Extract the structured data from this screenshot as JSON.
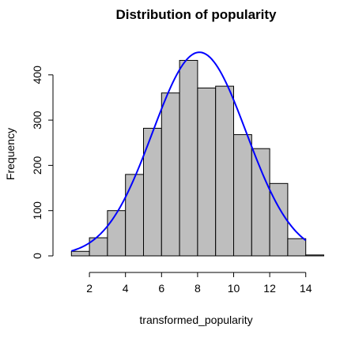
{
  "chart_data": {
    "type": "bar",
    "title": "Distribution of popularity",
    "xlabel": "transformed_popularity",
    "ylabel": "Frequency",
    "bins": [
      [
        1,
        2
      ],
      [
        2,
        3
      ],
      [
        3,
        4
      ],
      [
        4,
        5
      ],
      [
        5,
        6
      ],
      [
        6,
        7
      ],
      [
        7,
        8
      ],
      [
        8,
        9
      ],
      [
        9,
        10
      ],
      [
        10,
        11
      ],
      [
        11,
        12
      ],
      [
        12,
        13
      ],
      [
        13,
        14
      ],
      [
        14,
        15
      ]
    ],
    "values": [
      10,
      40,
      100,
      180,
      282,
      360,
      432,
      371,
      375,
      268,
      237,
      160,
      38,
      2
    ],
    "xlim": [
      0,
      15
    ],
    "ylim": [
      0,
      450
    ],
    "x_ticks": [
      2,
      4,
      6,
      8,
      10,
      12,
      14
    ],
    "y_ticks": [
      0,
      100,
      200,
      300,
      400
    ],
    "grid": false,
    "legend": "none",
    "bar_color": "#bebebe",
    "bar_border_color": "#000000",
    "curve": {
      "type": "normal_density_scaled",
      "mean": 8.1,
      "sd": 2.6,
      "peak": 450,
      "x_range": [
        1,
        14
      ],
      "color": "#0000ff"
    }
  }
}
